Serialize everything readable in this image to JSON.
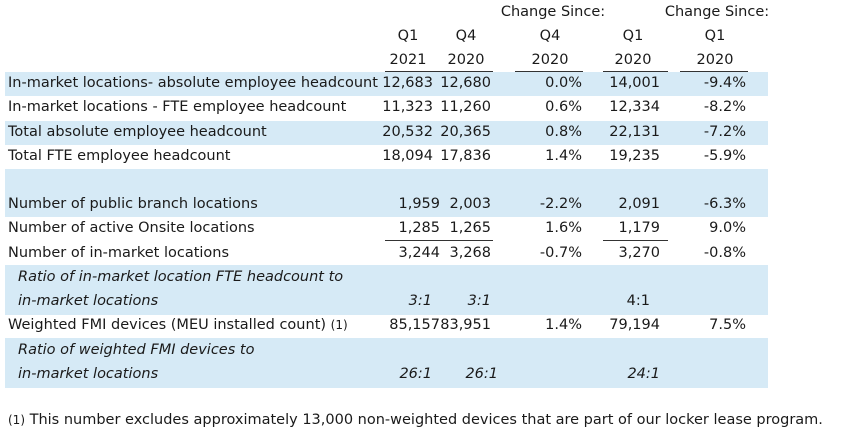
{
  "headers": {
    "q1_2021": [
      "Q1",
      "2021"
    ],
    "q4_2020": [
      "Q4",
      "2020"
    ],
    "change_q4": [
      "Change Since:",
      "Q4",
      "2020"
    ],
    "q1_2020": [
      "Q1",
      "2020"
    ],
    "change_q1": [
      "Change Since:",
      "Q1",
      "2020"
    ]
  },
  "rows": [
    {
      "label": "In-market locations- absolute employee headcount",
      "q1_2021": "12,683",
      "q4_2020": "12,680",
      "chg_q4": "0.0%",
      "q1_2020": "14,001",
      "chg_q1": "-9.4%"
    },
    {
      "label": "In-market locations - FTE employee headcount",
      "q1_2021": "11,323",
      "q4_2020": "11,260",
      "chg_q4": "0.6%",
      "q1_2020": "12,334",
      "chg_q1": "-8.2%"
    },
    {
      "label": "Total absolute employee headcount",
      "q1_2021": "20,532",
      "q4_2020": "20,365",
      "chg_q4": "0.8%",
      "q1_2020": "22,131",
      "chg_q1": "-7.2%"
    },
    {
      "label": "Total FTE employee headcount",
      "q1_2021": "18,094",
      "q4_2020": "17,836",
      "chg_q4": "1.4%",
      "q1_2020": "19,235",
      "chg_q1": "-5.9%"
    },
    {
      "label": "Number of public branch locations",
      "q1_2021": "1,959",
      "q4_2020": "2,003",
      "chg_q4": "-2.2%",
      "q1_2020": "2,091",
      "chg_q1": "-6.3%"
    },
    {
      "label": "Number of active Onsite locations",
      "q1_2021": "1,285",
      "q4_2020": "1,265",
      "chg_q4": "1.6%",
      "q1_2020": "1,179",
      "chg_q1": "9.0%"
    },
    {
      "label": "Number of in-market locations",
      "q1_2021": "3,244",
      "q4_2020": "3,268",
      "chg_q4": "-0.7%",
      "q1_2020": "3,270",
      "chg_q1": "-0.8%"
    },
    {
      "label_lines": [
        "Ratio of in-market location FTE headcount to",
        "in-market locations"
      ],
      "q1_2021": "3:1",
      "q4_2020": "3:1",
      "q1_2020": "4:1"
    },
    {
      "label": "Weighted FMI devices (MEU installed count)",
      "note_mark": "(1)",
      "q1_2021": "85,157",
      "q4_2020": "83,951",
      "chg_q4": "1.4%",
      "q1_2020": "79,194",
      "chg_q1": "7.5%"
    },
    {
      "label_lines": [
        "Ratio of weighted FMI devices to",
        "in-market locations"
      ],
      "q1_2021": "26:1",
      "q4_2020": "26:1",
      "q1_2020": "24:1"
    }
  ],
  "footnote": {
    "mark": "(1)",
    "text": " This number excludes approximately 13,000 non-weighted devices that are part of our locker lease program."
  }
}
